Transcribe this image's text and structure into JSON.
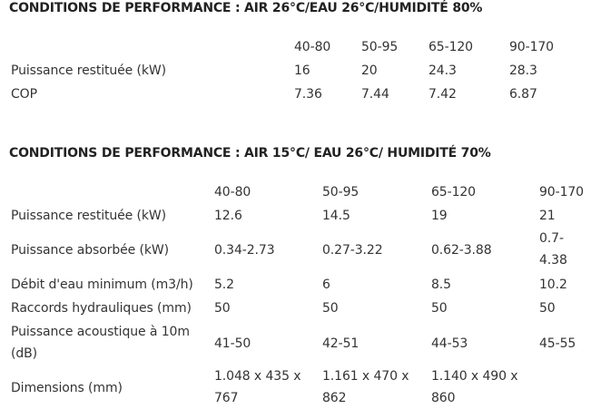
{
  "section1": {
    "title": "CONDITIONS DE PERFORMANCE : AIR 26°C/EAU 26°C/HUMIDITÉ 80%",
    "models": [
      "40-80",
      "50-95",
      "65-120",
      "90-170"
    ],
    "rows": [
      {
        "label": "Puissance restituée (kW)",
        "values": [
          "16",
          "20",
          "24.3",
          "28.3"
        ]
      },
      {
        "label": "COP",
        "values": [
          "7.36",
          "7.44",
          "7.42",
          "6.87"
        ]
      }
    ]
  },
  "section2": {
    "title": "CONDITIONS DE PERFORMANCE : AIR 15°C/ EAU 26°C/ HUMIDITÉ 70%",
    "models": [
      "40-80",
      "50-95",
      "65-120",
      "90-170"
    ],
    "rows": [
      {
        "label": "Puissance restituée (kW)",
        "values": [
          "12.6",
          "14.5",
          "19",
          "21"
        ]
      },
      {
        "label": "Puissance absorbée (kW)",
        "values": [
          "0.34-2.73",
          "0.27-3.22",
          "0.62-3.88",
          "0.7-4.38"
        ]
      },
      {
        "label": "Débit d'eau minimum (m3/h)",
        "values": [
          "5.2",
          "6",
          "8.5",
          "10.2"
        ]
      },
      {
        "label": "Raccords hydrauliques (mm)",
        "values": [
          "50",
          "50",
          "50",
          "50"
        ]
      },
      {
        "label": "Puissance acoustique à 10m (dB)",
        "values": [
          "41-50",
          "42-51",
          "44-53",
          "45-55"
        ]
      },
      {
        "label": "Dimensions (mm)",
        "values": [
          "1.048 x 435 x 767",
          "1.161 x 470 x 862",
          "1.140 x 490 x 860",
          ""
        ]
      }
    ]
  }
}
